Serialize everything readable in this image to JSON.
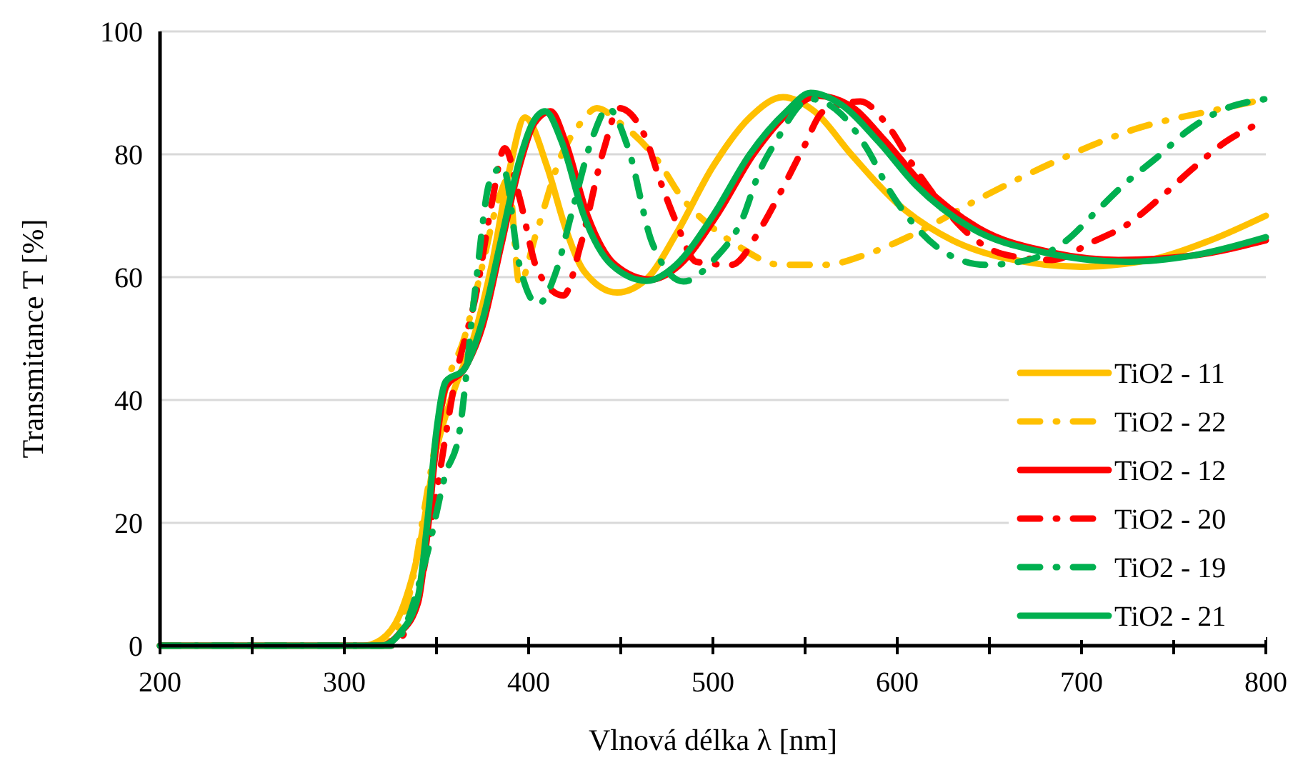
{
  "chart_data": {
    "type": "line",
    "xlabel": "Vlnová délka λ [nm]",
    "ylabel": "Transmitance T [%]",
    "xlim": [
      200,
      800
    ],
    "xticks": [
      200,
      {
        "value": 250,
        "label": null
      },
      300,
      {
        "value": 350,
        "label": null
      },
      400,
      {
        "value": 450,
        "label": null
      },
      500,
      {
        "value": 550,
        "label": null
      },
      600,
      {
        "value": 650,
        "label": null
      },
      700,
      {
        "value": 750,
        "label": null
      },
      800
    ],
    "ylim": [
      0,
      100
    ],
    "yticks": [
      0,
      20,
      40,
      60,
      80,
      100
    ],
    "grid": "y",
    "legend": "bottom right",
    "series": [
      {
        "name": "TiO2 - 11",
        "color": "#ffc000",
        "line_style": "solid",
        "x": [
          200,
          310,
          320,
          330,
          340,
          350,
          360,
          370,
          380,
          390,
          398,
          410,
          420,
          430,
          448,
          465,
          480,
          500,
          520,
          538,
          555,
          575,
          600,
          630,
          660,
          700,
          740,
          770,
          800
        ],
        "values": [
          0,
          0,
          1,
          5,
          15,
          32,
          42,
          50,
          62,
          78,
          86,
          78,
          68,
          61,
          57.5,
          60,
          67,
          78,
          86,
          89.3,
          87,
          80,
          72,
          66,
          63,
          61.7,
          63,
          66,
          70
        ]
      },
      {
        "name": "TiO2 - 22",
        "color": "#ffc000",
        "line_style": "dashed",
        "x": [
          200,
          320,
          335,
          345,
          355,
          365,
          375,
          383,
          389,
          395,
          404,
          418,
          428,
          437,
          450,
          470,
          483,
          500,
          514,
          537,
          560,
          586,
          609,
          646,
          687,
          728,
          777,
          800
        ],
        "values": [
          0,
          0,
          8,
          25,
          42,
          50,
          62,
          72,
          76,
          59,
          67,
          80,
          85,
          87.5,
          85,
          79,
          73,
          68,
          65,
          62,
          62,
          64,
          67,
          73,
          79,
          84,
          87.5,
          89
        ]
      },
      {
        "name": "TiO2 - 12",
        "color": "#ff0000",
        "line_style": "solid",
        "x": [
          200,
          320,
          330,
          340,
          345,
          350,
          355,
          365,
          375,
          385,
          395,
          403,
          412,
          420,
          432,
          447,
          466,
          482,
          502,
          522,
          542,
          557,
          574,
          594,
          614,
          644,
          684,
          720,
          760,
          800
        ],
        "values": [
          0,
          0,
          2,
          7,
          18,
          33,
          42,
          45,
          52,
          65,
          78,
          85,
          87,
          82,
          70,
          62,
          59.6,
          62,
          70,
          80,
          87,
          89.5,
          88,
          82,
          75,
          68,
          64,
          62.8,
          63.5,
          66
        ]
      },
      {
        "name": "TiO2 - 20",
        "color": "#ff0000",
        "line_style": "dashed",
        "x": [
          200,
          325,
          340,
          350,
          360,
          372,
          380,
          387,
          395,
          405,
          419,
          428,
          441,
          449,
          463,
          471,
          480,
          491,
          510,
          526,
          537,
          549,
          560,
          580,
          594,
          609,
          622,
          640,
          658,
          684,
          705,
          725,
          743,
          760,
          778,
          800
        ],
        "values": [
          0,
          0,
          8,
          25,
          43,
          58,
          72,
          81,
          73,
          61,
          57,
          65,
          81,
          87.5,
          83,
          76,
          69,
          62.5,
          62,
          68,
          74,
          81,
          87,
          88.6,
          85,
          78,
          72.6,
          66.7,
          63.7,
          62.8,
          65.6,
          68.6,
          73,
          77.6,
          82,
          85.5
        ]
      },
      {
        "name": "TiO2 - 19",
        "color": "#00b050",
        "line_style": "dashed",
        "x": [
          200,
          325,
          345,
          355,
          362,
          371,
          379,
          386,
          395,
          405,
          415,
          423,
          435,
          443,
          454,
          467,
          484,
          501,
          516,
          525,
          534,
          553,
          569,
          584,
          596,
          609,
          626,
          648,
          671,
          692,
          708,
          725,
          741,
          757,
          777,
          800
        ],
        "values": [
          0,
          0,
          15,
          28,
          34,
          58,
          75.6,
          78,
          62,
          55.6,
          61,
          70,
          83,
          87.5,
          81,
          65.6,
          59.3,
          63,
          69.5,
          77,
          82,
          89,
          86.7,
          80.7,
          74,
          68.6,
          64,
          62,
          62.8,
          66,
          70.7,
          75.6,
          79.5,
          83.7,
          87.3,
          89
        ]
      },
      {
        "name": "TiO2 - 21",
        "color": "#00b050",
        "line_style": "solid",
        "x": [
          200,
          320,
          330,
          340,
          345,
          350,
          355,
          365,
          375,
          385,
          395,
          402,
          409,
          418,
          430,
          445,
          464,
          480,
          500,
          520,
          540,
          553,
          570,
          590,
          610,
          640,
          680,
          725,
          760,
          800
        ],
        "values": [
          0,
          0,
          2,
          8,
          20,
          35,
          43,
          45,
          53,
          66,
          79,
          85,
          87,
          82,
          70,
          62,
          59.4,
          62,
          70,
          80,
          87,
          90,
          88,
          82,
          75,
          68,
          64,
          62.5,
          63.5,
          66.5
        ]
      }
    ]
  }
}
